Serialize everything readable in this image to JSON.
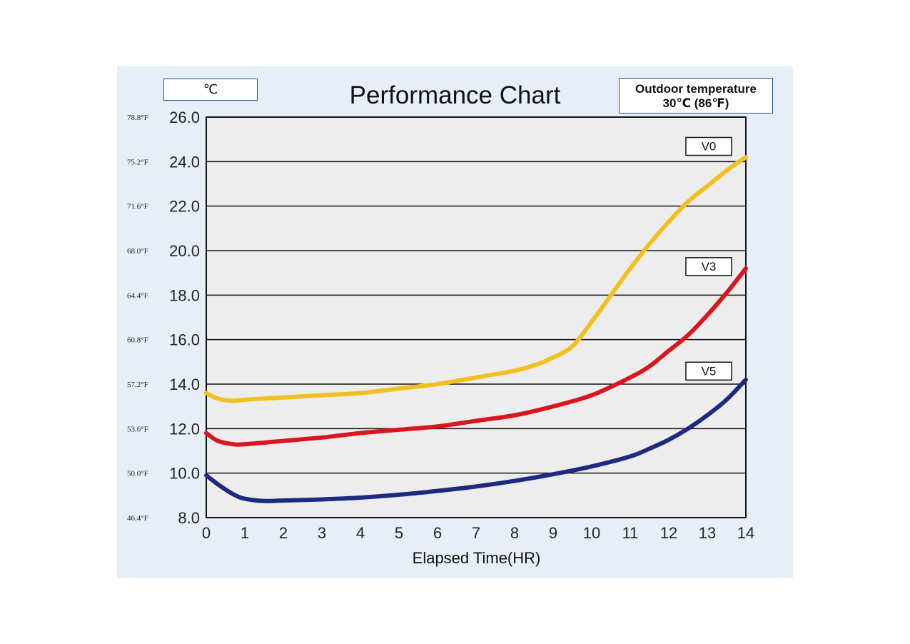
{
  "unit_box": "℃",
  "outdoor": {
    "line1": "Outdoor temperature",
    "line2": "30℃ (86℉)"
  },
  "chart_data": {
    "type": "line",
    "title": "Performance Chart",
    "xlabel": "Elapsed Time(HR)",
    "ylabel": "",
    "xlim": [
      0,
      14
    ],
    "ylim": [
      8,
      26
    ],
    "grid": true,
    "x_ticks": [
      "0",
      "1",
      "2",
      "3",
      "4",
      "5",
      "6",
      "7",
      "8",
      "9",
      "10",
      "11",
      "12",
      "13",
      "14"
    ],
    "y_ticks": [
      {
        "c": "8.0",
        "f": "46.4°F"
      },
      {
        "c": "10.0",
        "f": "50.0°F"
      },
      {
        "c": "12.0",
        "f": "53.6°F"
      },
      {
        "c": "14.0",
        "f": "57.2°F"
      },
      {
        "c": "16.0",
        "f": "60.8°F"
      },
      {
        "c": "18.0",
        "f": "64.4°F"
      },
      {
        "c": "20.0",
        "f": "68.0°F"
      },
      {
        "c": "22.0",
        "f": "71.6°F"
      },
      {
        "c": "24.0",
        "f": "75.2°F"
      },
      {
        "c": "26.0",
        "f": "78.8°F"
      }
    ],
    "series": [
      {
        "name": "V0",
        "color": "#f2c01e",
        "label_value": 24.7,
        "points": [
          [
            0,
            13.6
          ],
          [
            0.3,
            13.35
          ],
          [
            0.7,
            13.25
          ],
          [
            1,
            13.3
          ],
          [
            2,
            13.4
          ],
          [
            3,
            13.5
          ],
          [
            4,
            13.6
          ],
          [
            5,
            13.8
          ],
          [
            6,
            14.0
          ],
          [
            7,
            14.3
          ],
          [
            8,
            14.6
          ],
          [
            8.6,
            14.9
          ],
          [
            9,
            15.2
          ],
          [
            9.5,
            15.7
          ],
          [
            10,
            16.8
          ],
          [
            10.5,
            18.0
          ],
          [
            11,
            19.2
          ],
          [
            11.5,
            20.3
          ],
          [
            12,
            21.3
          ],
          [
            12.5,
            22.2
          ],
          [
            13,
            22.9
          ],
          [
            13.5,
            23.6
          ],
          [
            14,
            24.2
          ]
        ]
      },
      {
        "name": "V3",
        "color": "#d9151e",
        "label_value": 19.3,
        "points": [
          [
            0,
            11.8
          ],
          [
            0.3,
            11.45
          ],
          [
            0.7,
            11.3
          ],
          [
            1,
            11.3
          ],
          [
            2,
            11.45
          ],
          [
            3,
            11.6
          ],
          [
            4,
            11.8
          ],
          [
            5,
            11.95
          ],
          [
            6,
            12.1
          ],
          [
            7,
            12.35
          ],
          [
            8,
            12.6
          ],
          [
            9,
            13.0
          ],
          [
            10,
            13.5
          ],
          [
            11,
            14.3
          ],
          [
            11.5,
            14.8
          ],
          [
            12,
            15.5
          ],
          [
            12.5,
            16.2
          ],
          [
            13,
            17.1
          ],
          [
            13.5,
            18.1
          ],
          [
            14,
            19.2
          ]
        ]
      },
      {
        "name": "V5",
        "color": "#1e2a80",
        "label_value": 14.6,
        "points": [
          [
            0,
            9.9
          ],
          [
            0.3,
            9.5
          ],
          [
            0.7,
            9.05
          ],
          [
            1,
            8.85
          ],
          [
            1.5,
            8.75
          ],
          [
            2,
            8.77
          ],
          [
            3,
            8.82
          ],
          [
            4,
            8.9
          ],
          [
            5,
            9.03
          ],
          [
            6,
            9.2
          ],
          [
            7,
            9.4
          ],
          [
            8,
            9.65
          ],
          [
            9,
            9.95
          ],
          [
            10,
            10.3
          ],
          [
            11,
            10.75
          ],
          [
            11.5,
            11.1
          ],
          [
            12,
            11.5
          ],
          [
            12.5,
            12.0
          ],
          [
            13,
            12.6
          ],
          [
            13.5,
            13.3
          ],
          [
            14,
            14.2
          ]
        ]
      }
    ]
  }
}
